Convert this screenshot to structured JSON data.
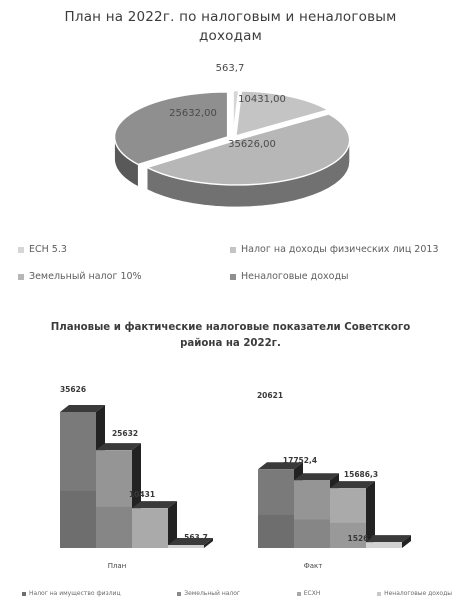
{
  "chart_data": [
    {
      "type": "pie",
      "title_lines": [
        "План на 2022г. по налоговым и неналоговым",
        "доходам"
      ],
      "slices": [
        {
          "name": "ЕСН 5.3",
          "value": 563.7,
          "label": "563,7",
          "color": "#d6d6d6"
        },
        {
          "name": "Налог на доходы физических лиц 2013",
          "value": 10431.0,
          "label": "10431,00",
          "color": "#c4c4c4"
        },
        {
          "name": "Земельный налог 10%",
          "value": 35626.0,
          "label": "35626,00",
          "color": "#b7b7b7"
        },
        {
          "name": "Неналоговые доходы",
          "value": 25632.0,
          "label": "25632,00",
          "color": "#8f8f8f"
        }
      ],
      "legend": [
        {
          "label": "ЕСН 5.3",
          "color": "#d6d6d6"
        },
        {
          "label": "Налог на доходы физических лиц 2013",
          "color": "#c4c4c4"
        },
        {
          "label": "Земельный налог 10%",
          "color": "#b7b7b7"
        },
        {
          "label": "Неналоговые доходы",
          "color": "#8f8f8f"
        }
      ]
    },
    {
      "type": "bar",
      "title_lines": [
        "Плановые и фактические  налоговые показатели Советского",
        "района на 2022г."
      ],
      "categories": [
        "План",
        "Факт"
      ],
      "series": [
        {
          "name": "Налог на имущество физлиц",
          "values": [
            35626,
            20621
          ],
          "labels": [
            "35626",
            "20621"
          ]
        },
        {
          "name": "Земельный налог",
          "values": [
            25632,
            17752.4
          ],
          "labels": [
            "25632",
            "17752,4"
          ]
        },
        {
          "name": "ЕСХН",
          "values": [
            10431,
            15686.3
          ],
          "labels": [
            "10431",
            "15686,3"
          ]
        },
        {
          "name": "Неналоговые доходы",
          "values": [
            563.7,
            1526.9
          ],
          "labels": [
            "563,7",
            "1526,9"
          ]
        }
      ],
      "legend": [
        {
          "label": "Налог на имущество физлиц",
          "color": "#6e6e6e"
        },
        {
          "label": "Земельный налог",
          "color": "#8a8a8a"
        },
        {
          "label": "ЕСХН",
          "color": "#a8a8a8"
        },
        {
          "label": "Неналоговые доходы",
          "color": "#c8c8c8"
        }
      ],
      "ylim": [
        0,
        40000
      ]
    }
  ]
}
